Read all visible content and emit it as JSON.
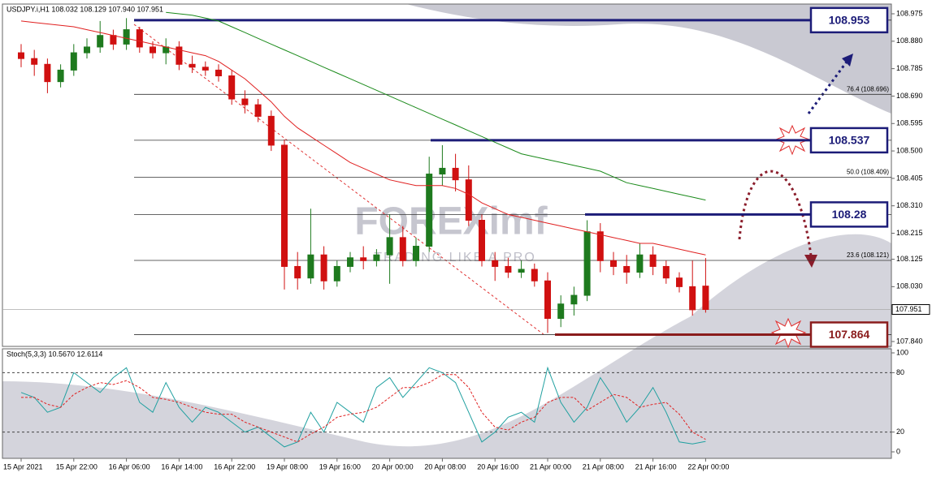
{
  "chart_data": [
    {
      "type": "candlestick",
      "header": "USDJPY.i,H1  108.032 108.129 107.940 107.951",
      "categories": [
        "15 Apr 2021",
        null,
        null,
        null,
        "15 Apr 22:00",
        null,
        null,
        null,
        "16 Apr 06:00",
        null,
        null,
        null,
        "16 Apr 14:00",
        null,
        null,
        null,
        "16 Apr 22:00",
        null,
        null,
        null,
        "19 Apr 08:00",
        null,
        null,
        null,
        "19 Apr 16:00",
        null,
        null,
        null,
        "20 Apr 00:00",
        null,
        null,
        null,
        "20 Apr 08:00",
        null,
        null,
        null,
        "20 Apr 16:00",
        null,
        null,
        null,
        "21 Apr 00:00",
        null,
        null,
        null,
        "21 Apr 08:00",
        null,
        null,
        null,
        "21 Apr 16:00",
        null,
        null,
        null,
        "22 Apr 00:00"
      ],
      "open": [
        108.84,
        108.82,
        108.8,
        108.74,
        108.78,
        108.84,
        108.86,
        108.9,
        108.87,
        108.92,
        108.86,
        108.84,
        108.86,
        108.8,
        108.79,
        108.78,
        108.76,
        108.68,
        108.66,
        108.62,
        108.52,
        108.1,
        108.06,
        108.14,
        108.05,
        108.1,
        108.13,
        108.12,
        108.14,
        108.2,
        108.12,
        108.17,
        108.42,
        108.44,
        108.4,
        108.26,
        108.12,
        108.1,
        108.08,
        108.09,
        108.05,
        107.92,
        107.97,
        108.0,
        108.22,
        108.12,
        108.1,
        108.08,
        108.14,
        108.1,
        108.06,
        108.03,
        108.032
      ],
      "high": [
        108.87,
        108.85,
        108.82,
        108.8,
        108.87,
        108.89,
        108.95,
        108.92,
        108.96,
        108.93,
        108.88,
        108.89,
        108.88,
        108.83,
        108.81,
        108.8,
        108.78,
        108.71,
        108.68,
        108.64,
        108.54,
        108.15,
        108.3,
        108.17,
        108.12,
        108.15,
        108.17,
        108.16,
        108.28,
        108.24,
        108.2,
        108.48,
        108.52,
        108.49,
        108.45,
        108.28,
        108.15,
        108.13,
        108.12,
        108.11,
        108.08,
        108.0,
        108.03,
        108.26,
        108.25,
        108.15,
        108.14,
        108.18,
        108.17,
        108.12,
        108.08,
        108.12,
        108.129
      ],
      "low": [
        108.79,
        108.76,
        108.7,
        108.72,
        108.76,
        108.82,
        108.84,
        108.85,
        108.85,
        108.84,
        108.82,
        108.8,
        108.78,
        108.77,
        108.76,
        108.74,
        108.66,
        108.63,
        108.6,
        108.5,
        108.02,
        108.02,
        108.04,
        108.02,
        108.03,
        108.08,
        108.09,
        108.1,
        108.04,
        108.1,
        108.1,
        108.15,
        108.38,
        108.36,
        108.24,
        108.1,
        108.05,
        108.06,
        108.06,
        108.03,
        107.87,
        107.89,
        107.93,
        107.98,
        108.08,
        108.07,
        108.04,
        108.06,
        108.07,
        108.04,
        108.01,
        107.93,
        107.94
      ],
      "close": [
        108.82,
        108.8,
        108.74,
        108.78,
        108.84,
        108.86,
        108.9,
        108.87,
        108.92,
        108.86,
        108.84,
        108.86,
        108.8,
        108.79,
        108.78,
        108.76,
        108.68,
        108.66,
        108.62,
        108.52,
        108.1,
        108.06,
        108.14,
        108.05,
        108.1,
        108.13,
        108.12,
        108.14,
        108.2,
        108.12,
        108.17,
        108.42,
        108.44,
        108.4,
        108.26,
        108.12,
        108.1,
        108.08,
        108.09,
        108.05,
        107.92,
        107.97,
        108.0,
        108.22,
        108.12,
        108.1,
        108.08,
        108.14,
        108.1,
        108.06,
        108.03,
        107.95,
        107.951
      ],
      "up_color": "#1e7a1e",
      "down_color": "#d01010",
      "series": [
        {
          "color": "#e02020",
          "values": [
            108.95,
            108.945,
            108.94,
            108.935,
            108.93,
            108.92,
            108.91,
            108.9,
            108.89,
            108.88,
            108.87,
            108.86,
            108.85,
            108.84,
            108.83,
            108.81,
            108.78,
            108.75,
            108.71,
            108.67,
            108.62,
            108.58,
            108.55,
            108.52,
            108.49,
            108.46,
            108.44,
            108.42,
            108.4,
            108.39,
            108.38,
            108.38,
            108.38,
            108.37,
            108.35,
            108.32,
            108.3,
            108.28,
            108.27,
            108.26,
            108.25,
            108.24,
            108.23,
            108.22,
            108.21,
            108.2,
            108.19,
            108.18,
            108.18,
            108.17,
            108.16,
            108.15,
            108.14
          ]
        },
        {
          "color": "#1a8a1a",
          "values": [
            null,
            null,
            null,
            null,
            null,
            null,
            null,
            null,
            null,
            null,
            null,
            108.98,
            108.975,
            108.97,
            108.96,
            108.95,
            108.93,
            108.91,
            108.89,
            108.87,
            108.85,
            108.83,
            108.81,
            108.79,
            108.77,
            108.75,
            108.73,
            108.71,
            108.69,
            108.67,
            108.65,
            108.63,
            108.61,
            108.59,
            108.57,
            108.55,
            108.53,
            108.51,
            108.49,
            108.48,
            108.47,
            108.46,
            108.45,
            108.44,
            108.43,
            108.41,
            108.39,
            108.38,
            108.37,
            108.36,
            108.35,
            108.34,
            108.33
          ]
        }
      ],
      "ylim": [
        107.84,
        108.975
      ],
      "yticks": [
        {
          "value": 108.975,
          "label": "108.975"
        },
        {
          "value": 108.88,
          "label": "108.880"
        },
        {
          "value": 108.785,
          "label": "108.785"
        },
        {
          "value": 108.69,
          "label": "108.690"
        },
        {
          "value": 108.595,
          "label": "108.595"
        },
        {
          "value": 108.5,
          "label": "108.500"
        },
        {
          "value": 108.405,
          "label": "108.405"
        },
        {
          "value": 108.31,
          "label": "108.310"
        },
        {
          "value": 108.215,
          "label": "108.215"
        },
        {
          "value": 108.125,
          "label": "108.125"
        },
        {
          "value": 108.03,
          "label": "108.030"
        },
        {
          "value": 107.84,
          "label": "107.840"
        }
      ],
      "current_price": 107.951,
      "levels": [
        {
          "value": 108.953,
          "color": "#1c1c78"
        },
        {
          "value": 108.537,
          "color": "#1c1c78"
        },
        {
          "value": 108.28,
          "color": "#1c1c78"
        },
        {
          "value": 107.864,
          "color": "#8a1c1c"
        }
      ],
      "fib": [
        {
          "label": "76.4 (108.696)",
          "value": 108.696
        },
        {
          "label": "50.0 (108.409)",
          "value": 108.409
        },
        {
          "label": "23.6 (108.121)",
          "value": 108.121
        }
      ],
      "watermark": {
        "title": "FOREXimf",
        "tagline": "TRADING LIKE A PRO"
      }
    },
    {
      "type": "line",
      "header": "Stoch(5,3,3) 10.5670 12.6114",
      "series": [
        {
          "color": "#20a0a0",
          "values": [
            60,
            55,
            40,
            45,
            80,
            70,
            60,
            75,
            85,
            50,
            40,
            70,
            45,
            30,
            45,
            40,
            30,
            20,
            25,
            15,
            5,
            10,
            40,
            20,
            50,
            40,
            30,
            65,
            75,
            55,
            70,
            85,
            80,
            70,
            40,
            10,
            20,
            35,
            40,
            30,
            85,
            50,
            30,
            45,
            75,
            55,
            30,
            45,
            65,
            40,
            10,
            8,
            10.567
          ]
        },
        {
          "color": "#e02020",
          "values": [
            55,
            55,
            48,
            45,
            58,
            65,
            70,
            68,
            72,
            65,
            55,
            53,
            50,
            45,
            40,
            38,
            38,
            30,
            25,
            20,
            15,
            10,
            18,
            25,
            35,
            38,
            40,
            45,
            55,
            65,
            65,
            70,
            78,
            78,
            65,
            40,
            25,
            22,
            30,
            35,
            50,
            55,
            55,
            42,
            50,
            58,
            55,
            45,
            48,
            50,
            38,
            20,
            12.6114
          ]
        }
      ],
      "ylim": [
        0,
        100
      ],
      "yticks": [
        100,
        80,
        20,
        0
      ]
    }
  ]
}
